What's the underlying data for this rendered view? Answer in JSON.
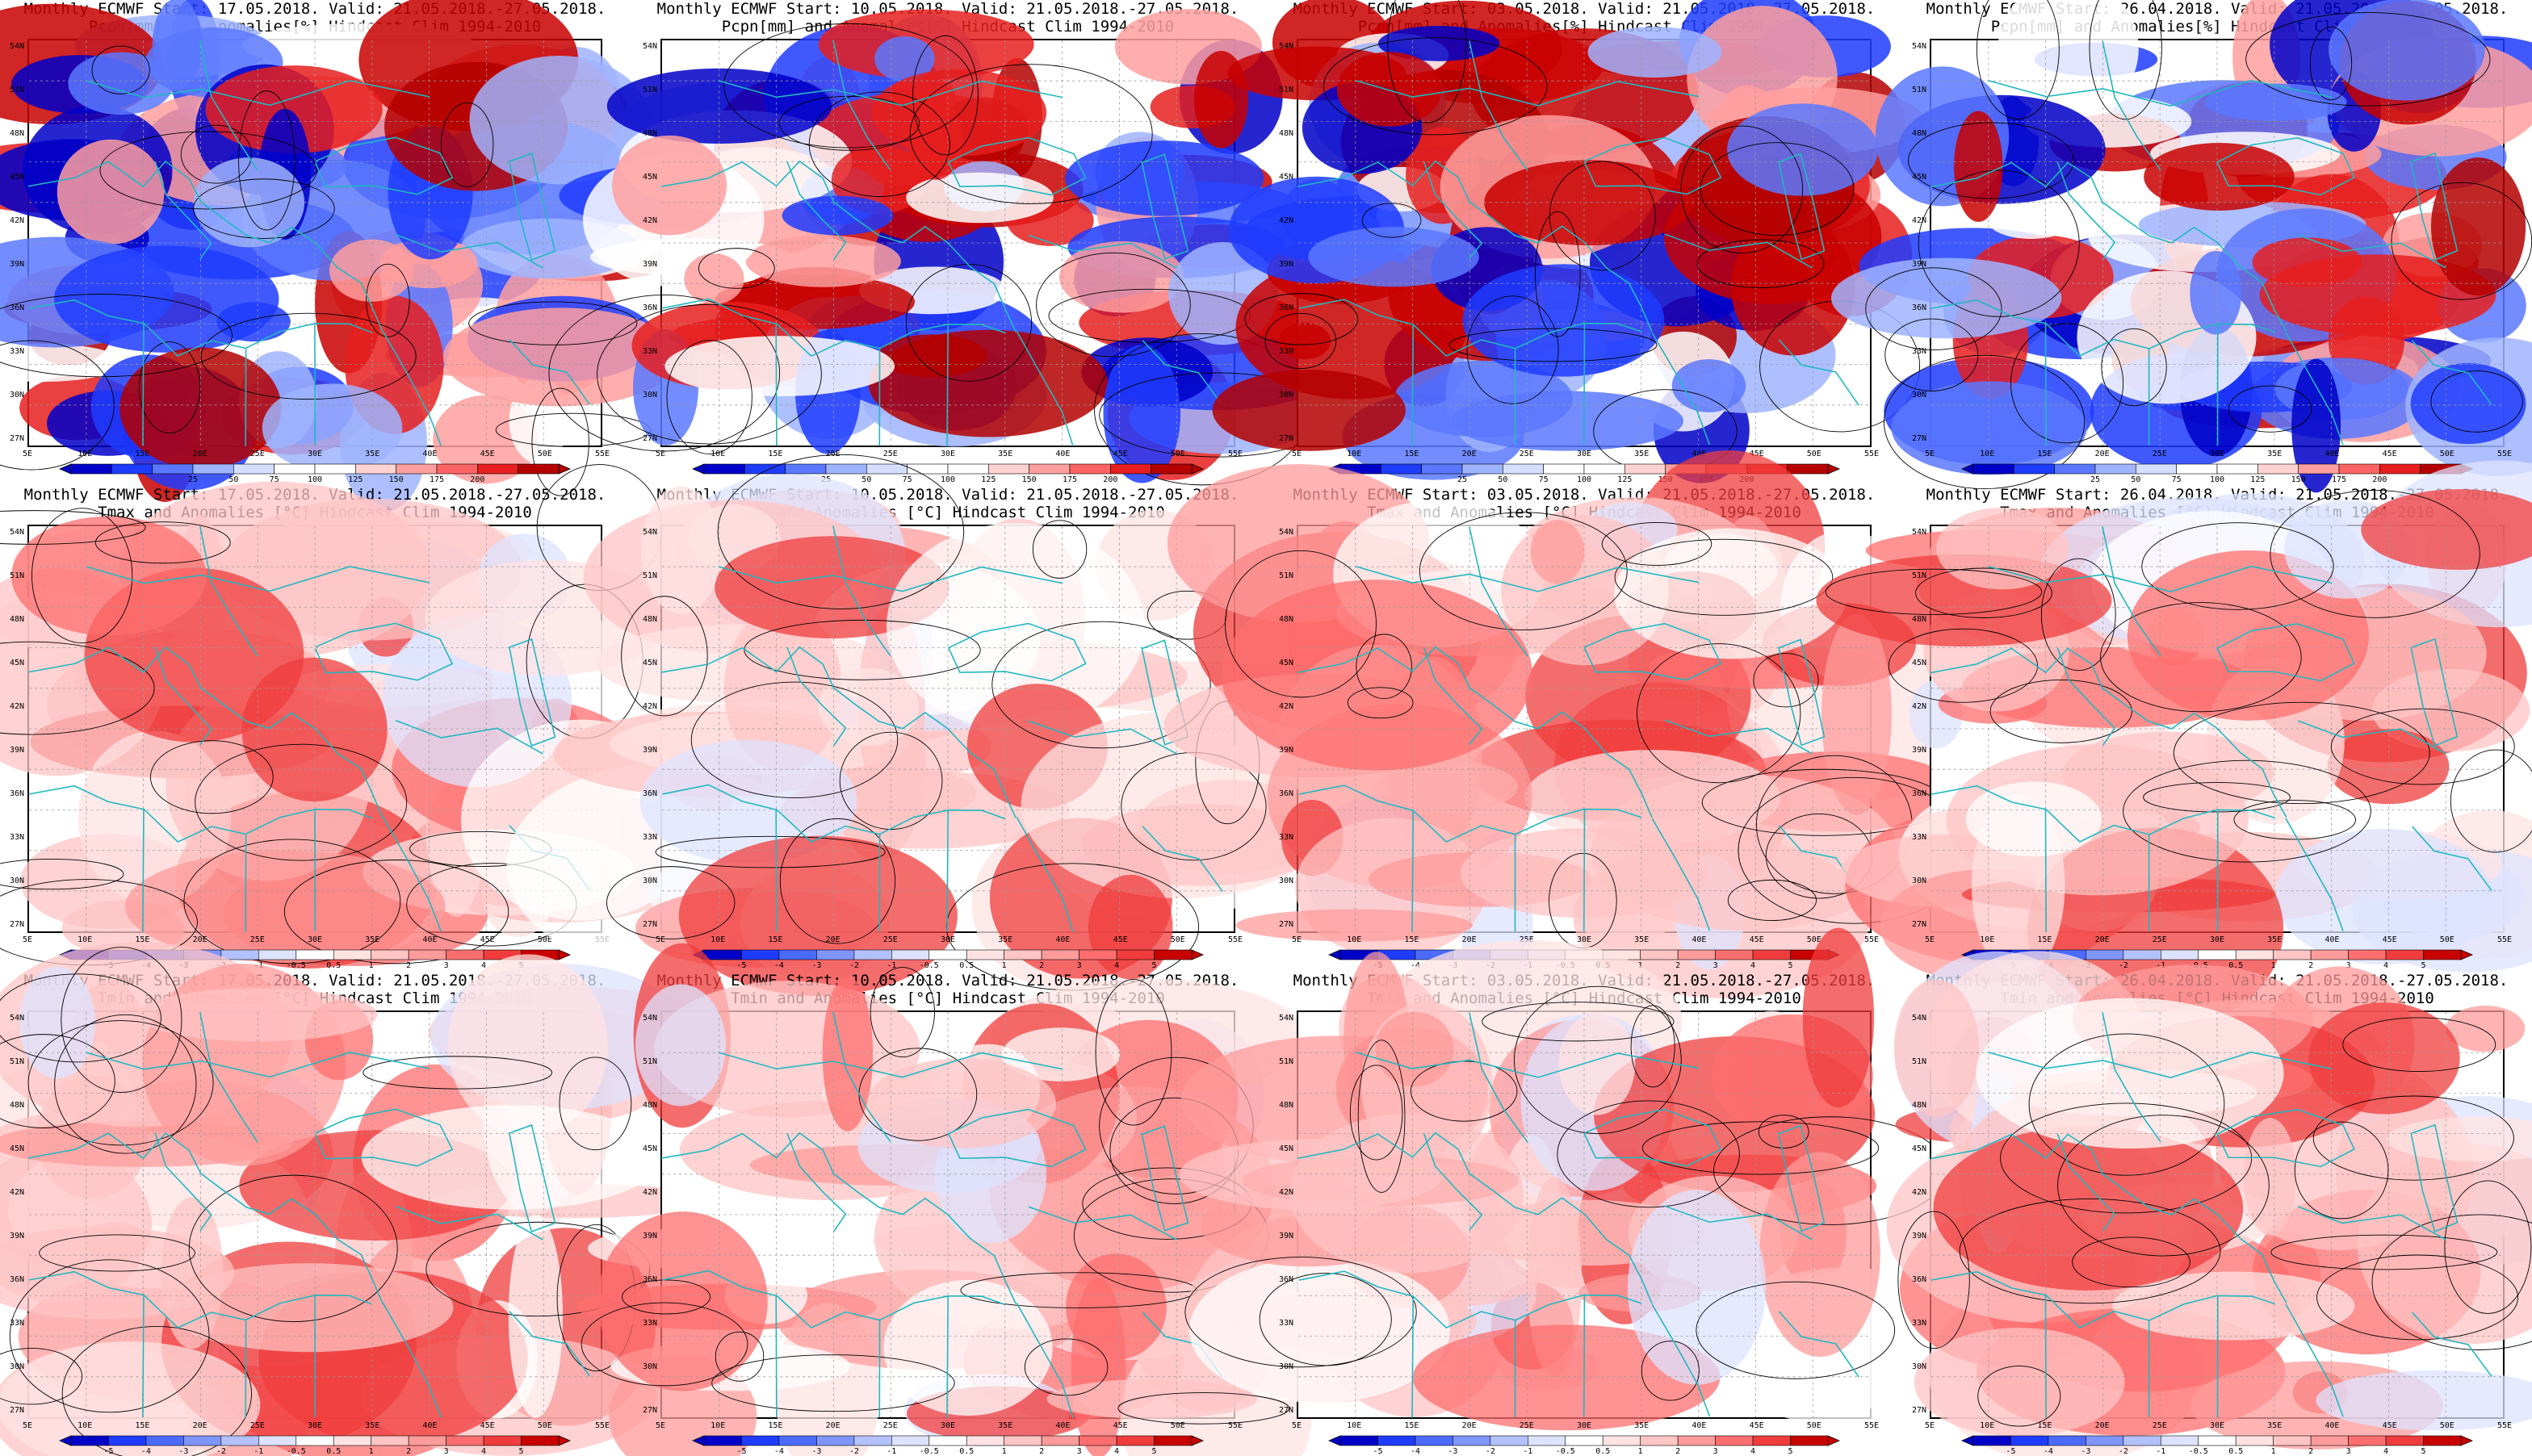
{
  "columns": [
    {
      "title": "Monthly ECMWF Start: 17.05.2018. Valid: 21.05.2018.-27.05.2018."
    },
    {
      "title": "Monthly ECMWF Start: 10.05.2018. Valid: 21.05.2018.-27.05.2018."
    },
    {
      "title": "Monthly ECMWF Start: 03.05.2018. Valid: 21.05.2018.-27.05.2018."
    },
    {
      "title": "Monthly ECMWF Start: 26.04.2018. Valid: 21.05.2018.-27.05.2018."
    }
  ],
  "rows": [
    {
      "variable": "Pcpn[mm] and Anomalies[%] Hindcast Clim 1994-2010",
      "colorbar": "precip"
    },
    {
      "variable": "Tmax and Anomalies [°C] Hindcast Clim 1994-2010",
      "colorbar": "temp"
    },
    {
      "variable": "Tmin and Anomalies [°C] Hindcast Clim 1994-2010",
      "colorbar": "temp"
    }
  ],
  "lat_ticks": [
    "54N",
    "51N",
    "48N",
    "45N",
    "42N",
    "39N",
    "36N",
    "33N",
    "30N",
    "27N"
  ],
  "lon_ticks": [
    "5E",
    "10E",
    "15E",
    "20E",
    "25E",
    "30E",
    "35E",
    "40E",
    "45E",
    "50E",
    "55E"
  ],
  "colorbars": {
    "precip": {
      "labels": [
        "25",
        "50",
        "75",
        "100",
        "125",
        "150",
        "175",
        "200"
      ],
      "colors": [
        "#0000c8",
        "#1e3cff",
        "#5a78ff",
        "#9fb4ff",
        "#d6dfff",
        "#ffffff",
        "#ffffff",
        "#ffd2d2",
        "#ff9f9f",
        "#ff6464",
        "#e61e1e",
        "#b40000"
      ]
    },
    "temp": {
      "labels": [
        "-5",
        "-4",
        "-3",
        "-2",
        "-1",
        "-0.5",
        "0.5",
        "1",
        "2",
        "3",
        "4",
        "5"
      ],
      "colors": [
        "#0000c8",
        "#1e3cff",
        "#4b6bff",
        "#7f95ff",
        "#b3c2ff",
        "#dde3ff",
        "#ffffff",
        "#ffe3e3",
        "#ffc4c4",
        "#ff9b9b",
        "#ff6e6e",
        "#f03c3c",
        "#c80000"
      ]
    }
  },
  "colors": {
    "coast": "#20b8c0",
    "contour": "#000000",
    "grid": "#9a9a9a"
  }
}
